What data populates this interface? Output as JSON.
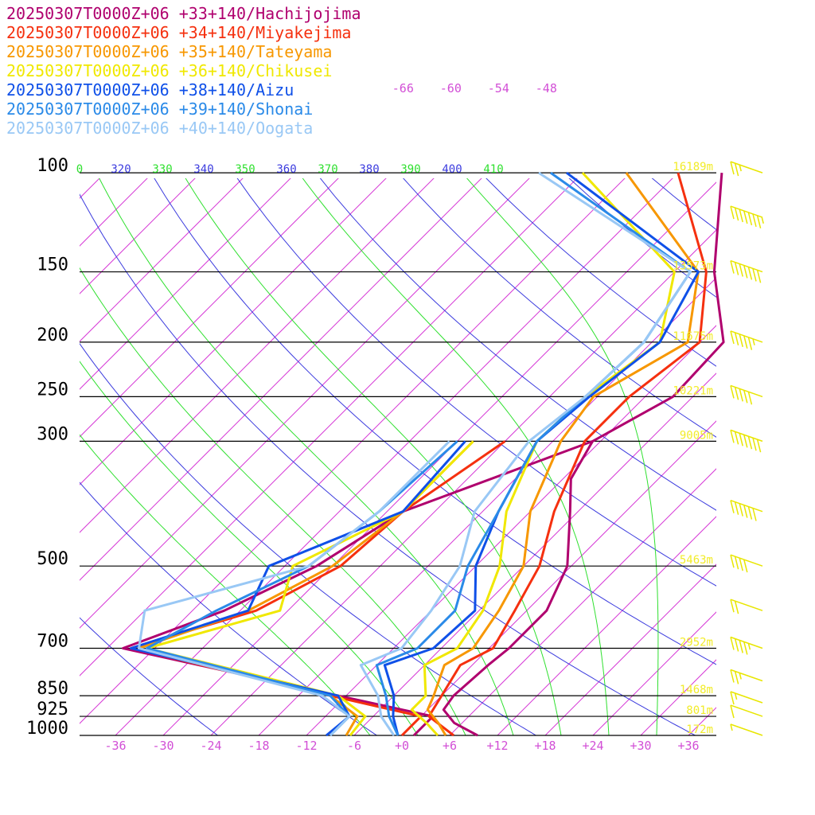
{
  "colors": {
    "isobar": "#000000",
    "isotherm": "#d63ad6",
    "dry_adiabat": "#3b3bde",
    "moist_adiabat": "#2fe02f",
    "wind_barb": "#e8e600",
    "height_label": "#f2ec2a",
    "temp_label": "#d24fd6"
  },
  "chart_data": {
    "type": "line",
    "chart_kind": "skew-T log-P sounding",
    "xlim": [
      -40,
      40
    ],
    "ylim": [
      1000,
      100
    ],
    "y_scale": "log",
    "x_ticks": [
      "-36",
      "-30",
      "-24",
      "-18",
      "-12",
      "-6",
      "+0",
      "+6",
      "+12",
      "+18",
      "+24",
      "+30",
      "+36"
    ],
    "pressure_levels": [
      {
        "label": "100",
        "p": 100,
        "height": "16189m"
      },
      {
        "label": "150",
        "p": 150,
        "height": "13573m"
      },
      {
        "label": "200",
        "p": 200,
        "height": "11675m"
      },
      {
        "label": "250",
        "p": 250,
        "height": "10221m"
      },
      {
        "label": "300",
        "p": 300,
        "height": "9005m"
      },
      {
        "label": "500",
        "p": 500,
        "height": "5463m"
      },
      {
        "label": "700",
        "p": 700,
        "height": "2952m"
      },
      {
        "label": "850",
        "p": 850,
        "height": "1468m"
      },
      {
        "label": "925",
        "p": 925,
        "height": "801m"
      },
      {
        "label": "1000",
        "p": 1000,
        "height": "172m"
      }
    ],
    "upper_isotherm_labels": [
      "-66",
      "-60",
      "-54",
      "-48"
    ],
    "theta_labels": [
      {
        "text": "0",
        "kind": "moist"
      },
      {
        "text": "320",
        "kind": "dry"
      },
      {
        "text": "330",
        "kind": "moist"
      },
      {
        "text": "340",
        "kind": "dry"
      },
      {
        "text": "350",
        "kind": "moist"
      },
      {
        "text": "360",
        "kind": "dry"
      },
      {
        "text": "370",
        "kind": "moist"
      },
      {
        "text": "380",
        "kind": "dry"
      },
      {
        "text": "390",
        "kind": "moist"
      },
      {
        "text": "400",
        "kind": "dry"
      },
      {
        "text": "410",
        "kind": "moist"
      }
    ],
    "series": [
      {
        "name": "20250307T0000Z+06 +33+140/Hachijojima",
        "color": "#b0006e",
        "temperature": [
          [
            1000,
            9.5
          ],
          [
            950,
            5
          ],
          [
            900,
            2
          ],
          [
            850,
            1.5
          ],
          [
            750,
            2
          ],
          [
            700,
            2.5
          ],
          [
            600,
            2.5
          ],
          [
            500,
            -0.5
          ],
          [
            400,
            -7
          ],
          [
            350,
            -11
          ],
          [
            300,
            -13
          ],
          [
            250,
            -8.5
          ],
          [
            200,
            -9
          ],
          [
            150,
            -19
          ],
          [
            100,
            -30.5
          ]
        ],
        "dewpoint": [
          [
            1000,
            1.5
          ],
          [
            925,
            1.5
          ],
          [
            850,
            -13
          ],
          [
            700,
            -46
          ],
          [
            600,
            -38
          ],
          [
            500,
            -32
          ],
          [
            400,
            -28
          ],
          [
            300,
            -13
          ]
        ]
      },
      {
        "name": "20250307T0000Z+06 +34+140/Miyakejima",
        "color": "#f5300f",
        "temperature": [
          [
            1000,
            6.5
          ],
          [
            925,
            1
          ],
          [
            850,
            0
          ],
          [
            750,
            -1.5
          ],
          [
            700,
            0.5
          ],
          [
            600,
            -1.5
          ],
          [
            500,
            -4
          ],
          [
            400,
            -9
          ],
          [
            300,
            -14
          ],
          [
            250,
            -14
          ],
          [
            200,
            -12
          ],
          [
            150,
            -20
          ],
          [
            100,
            -36
          ]
        ],
        "dewpoint": [
          [
            1000,
            0
          ],
          [
            925,
            0
          ],
          [
            850,
            -14
          ],
          [
            700,
            -45
          ],
          [
            600,
            -34
          ],
          [
            500,
            -29
          ],
          [
            400,
            -28
          ],
          [
            300,
            -24
          ]
        ]
      },
      {
        "name": "20250307T0000Z+06 +35+140/Tateyama",
        "color": "#f79700",
        "temperature": [
          [
            1000,
            5.5
          ],
          [
            950,
            3
          ],
          [
            900,
            0
          ],
          [
            850,
            -1
          ],
          [
            750,
            -3.5
          ],
          [
            700,
            -2
          ],
          [
            600,
            -3.5
          ],
          [
            500,
            -6
          ],
          [
            400,
            -12
          ],
          [
            300,
            -17
          ],
          [
            250,
            -18.5
          ],
          [
            200,
            -13.5
          ],
          [
            150,
            -21
          ],
          [
            100,
            -42.5
          ]
        ],
        "dewpoint": [
          [
            1000,
            -7
          ],
          [
            925,
            -8
          ],
          [
            850,
            -14
          ],
          [
            700,
            -44
          ],
          [
            600,
            -35
          ],
          [
            500,
            -30
          ],
          [
            400,
            -28
          ],
          [
            300,
            -28
          ]
        ]
      },
      {
        "name": "20250307T0000Z+06 +36+140/Chikusei",
        "color": "#f0e800",
        "temperature": [
          [
            1000,
            4.5
          ],
          [
            950,
            1.5
          ],
          [
            900,
            -2
          ],
          [
            850,
            -2
          ],
          [
            750,
            -6
          ],
          [
            700,
            -4
          ],
          [
            600,
            -5.5
          ],
          [
            500,
            -9
          ],
          [
            400,
            -15
          ],
          [
            300,
            -20
          ],
          [
            250,
            -19.5
          ],
          [
            200,
            -17
          ],
          [
            150,
            -24
          ],
          [
            100,
            -48
          ]
        ],
        "dewpoint": [
          [
            1000,
            -6.5
          ],
          [
            925,
            -7
          ],
          [
            850,
            -13
          ],
          [
            700,
            -43
          ],
          [
            600,
            -31
          ],
          [
            500,
            -35
          ],
          [
            400,
            -28
          ],
          [
            300,
            -28
          ]
        ]
      },
      {
        "name": "20250307T0000Z+06 +38+140/Aizu",
        "color": "#0f50e8",
        "temperature": [
          [
            1000,
            -0.5
          ],
          [
            925,
            -3.5
          ],
          [
            850,
            -6
          ],
          [
            750,
            -11
          ],
          [
            700,
            -7
          ],
          [
            600,
            -6.5
          ],
          [
            500,
            -12
          ],
          [
            400,
            -16
          ],
          [
            300,
            -20
          ],
          [
            250,
            -19
          ],
          [
            200,
            -17
          ],
          [
            150,
            -21
          ],
          [
            100,
            -50
          ]
        ],
        "dewpoint": [
          [
            1000,
            -9.5
          ],
          [
            925,
            -9
          ],
          [
            850,
            -13
          ],
          [
            700,
            -45
          ],
          [
            600,
            -35
          ],
          [
            500,
            -38
          ],
          [
            400,
            -28
          ],
          [
            300,
            -29
          ]
        ]
      },
      {
        "name": "20250307T0000Z+06 +39+140/Shonai",
        "color": "#2a8ae8",
        "temperature": [
          [
            1000,
            -0.5
          ],
          [
            925,
            -4
          ],
          [
            850,
            -7
          ],
          [
            750,
            -12
          ],
          [
            700,
            -9
          ],
          [
            600,
            -9
          ],
          [
            500,
            -13
          ],
          [
            400,
            -16
          ],
          [
            300,
            -20
          ],
          [
            250,
            -19.5
          ],
          [
            200,
            -19
          ],
          [
            150,
            -22
          ],
          [
            100,
            -52
          ]
        ],
        "dewpoint": [
          [
            1000,
            -9
          ],
          [
            925,
            -9
          ],
          [
            850,
            -14
          ],
          [
            700,
            -43
          ],
          [
            600,
            -39
          ],
          [
            500,
            -33
          ],
          [
            400,
            -31
          ],
          [
            300,
            -30
          ]
        ]
      },
      {
        "name": "20250307T0000Z+06 +40+140/Oogata",
        "color": "#99c8f5",
        "temperature": [
          [
            1000,
            -1
          ],
          [
            925,
            -5
          ],
          [
            850,
            -8
          ],
          [
            750,
            -14
          ],
          [
            700,
            -11
          ],
          [
            600,
            -12
          ],
          [
            500,
            -14
          ],
          [
            400,
            -19
          ],
          [
            300,
            -21
          ],
          [
            250,
            -19.5
          ],
          [
            200,
            -19
          ],
          [
            150,
            -22
          ],
          [
            100,
            -53.5
          ]
        ],
        "dewpoint": [
          [
            1000,
            -9
          ],
          [
            925,
            -9
          ],
          [
            850,
            -15
          ],
          [
            700,
            -44
          ],
          [
            600,
            -48
          ],
          [
            500,
            -33
          ],
          [
            400,
            -31
          ],
          [
            300,
            -31
          ]
        ]
      }
    ],
    "wind_barbs": [
      {
        "p": 100,
        "speed_kt": 25
      },
      {
        "p": 120,
        "speed_kt": 75
      },
      {
        "p": 150,
        "speed_kt": 70
      },
      {
        "p": 200,
        "speed_kt": 55
      },
      {
        "p": 250,
        "speed_kt": 50
      },
      {
        "p": 300,
        "speed_kt": 70
      },
      {
        "p": 400,
        "speed_kt": 60
      },
      {
        "p": 500,
        "speed_kt": 40
      },
      {
        "p": 600,
        "speed_kt": 20
      },
      {
        "p": 700,
        "speed_kt": 45
      },
      {
        "p": 800,
        "speed_kt": 25
      },
      {
        "p": 875,
        "speed_kt": 15
      },
      {
        "p": 925,
        "speed_kt": 10
      },
      {
        "p": 1000,
        "speed_kt": 5
      }
    ]
  }
}
